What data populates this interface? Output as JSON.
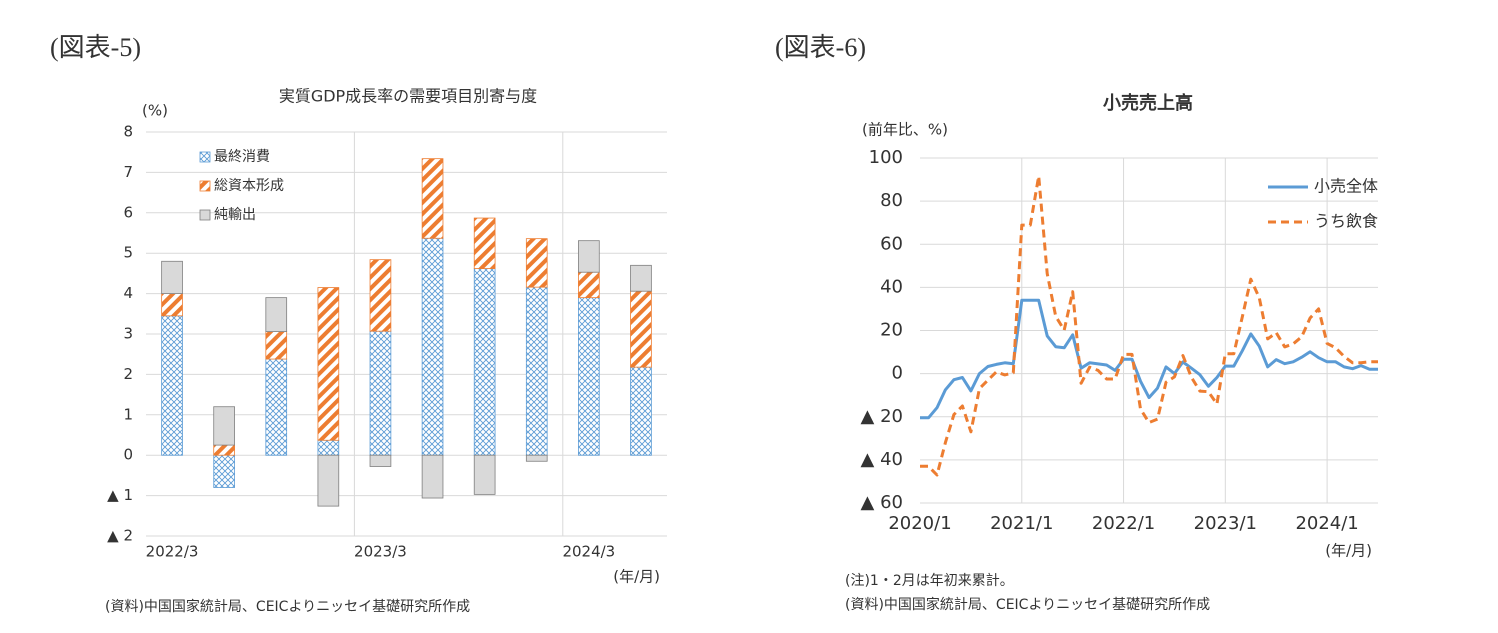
{
  "chart_data": [
    {
      "type": "bar",
      "stacked": true,
      "figure_label": "(図表-5)",
      "title": "実質GDP成長率の需要項目別寄与度",
      "y_unit": "(%)",
      "x_unit": "(年/月)",
      "source": "(資料)中国国家統計局、CEICよりニッセイ基礎研究所作成",
      "categories": [
        "2022/3",
        null,
        null,
        null,
        "2023/3",
        null,
        null,
        null,
        "2024/3",
        null
      ],
      "series": [
        {
          "name": "最終消費",
          "color": "#5b9bd5",
          "pattern": "crosshatch",
          "values": [
            3.45,
            -0.8,
            2.38,
            0.37,
            3.07,
            5.37,
            4.62,
            4.16,
            3.9,
            2.18
          ]
        },
        {
          "name": "総資本形成",
          "color": "#ed7d31",
          "pattern": "diagonal",
          "values": [
            0.55,
            0.25,
            0.68,
            3.78,
            1.77,
            1.97,
            1.25,
            1.2,
            0.63,
            1.88
          ]
        },
        {
          "name": "純輸出",
          "color": "#d9d9d9",
          "pattern": "solid",
          "values": [
            0.8,
            0.95,
            0.84,
            -1.26,
            -0.28,
            -1.06,
            -0.97,
            -0.15,
            0.78,
            0.64
          ]
        }
      ],
      "ylim": [
        -2,
        8
      ],
      "yticks": [
        {
          "value": -2,
          "label": "▲ 2"
        },
        {
          "value": -1,
          "label": "▲ 1"
        },
        0,
        1,
        2,
        3,
        4,
        5,
        6,
        7,
        8
      ],
      "grid": true,
      "legend": "upper left"
    },
    {
      "type": "line",
      "figure_label": "(図表-6)",
      "title": "小売売上高",
      "y_unit": "(前年比、%)",
      "x_unit": "(年/月)",
      "note": "(注)1・2月は年初来累計。",
      "source": "(資料)中国国家統計局、CEICよりニッセイ基礎研究所作成",
      "categories": [
        "2020/1",
        null,
        null,
        null,
        null,
        null,
        null,
        null,
        null,
        null,
        null,
        null,
        "2021/1",
        null,
        null,
        null,
        null,
        null,
        null,
        null,
        null,
        null,
        null,
        null,
        "2022/1",
        null,
        null,
        null,
        null,
        null,
        null,
        null,
        null,
        null,
        null,
        null,
        "2023/1",
        null,
        null,
        null,
        null,
        null,
        null,
        null,
        null,
        null,
        null,
        null,
        "2024/1",
        null,
        null,
        null,
        null,
        null,
        null
      ],
      "series": [
        {
          "name": "小売全体",
          "color": "#5b9bd5",
          "style": "solid",
          "values": [
            -20.5,
            -20.5,
            -15.8,
            -7.5,
            -2.8,
            -1.8,
            -8,
            0,
            3.3,
            4.3,
            5,
            4.6,
            34,
            34,
            34,
            17.5,
            12.5,
            12,
            18,
            2.5,
            5,
            4.5,
            4,
            1.5,
            6.7,
            6.7,
            -3.5,
            -11.1,
            -6.7,
            3.1,
            0,
            5.4,
            2.5,
            -0.5,
            -5.9,
            -1.8,
            3.5,
            3.5,
            10.6,
            18.4,
            12.7,
            3.1,
            6.5,
            4.6,
            5.5,
            7.6,
            10.1,
            7.4,
            5.5,
            5.5,
            3.1,
            2.3,
            3.7,
            2.0,
            2.0
          ]
        },
        {
          "name": "うち飲食",
          "color": "#ed7d31",
          "style": "dashed",
          "values": [
            -43,
            -43,
            -47,
            -32,
            -19,
            -15,
            -27,
            -7,
            -3,
            0.8,
            -0.6,
            0.4,
            68.9,
            68.9,
            91.6,
            46.4,
            26.6,
            20.2,
            38,
            -4.5,
            3,
            1.5,
            -2.5,
            -2.5,
            8.9,
            8.9,
            -16.4,
            -22.7,
            -21.1,
            -4,
            -1.5,
            8.4,
            -1.7,
            -8.1,
            -8.4,
            -14.1,
            9.2,
            9.2,
            26.3,
            43.8,
            35.1,
            16.1,
            19,
            12.4,
            13.8,
            17.1,
            25.8,
            30,
            14,
            12,
            8,
            5,
            5,
            5.5,
            5.5
          ]
        }
      ],
      "ylim": [
        -60,
        100
      ],
      "yticks": [
        {
          "value": -60,
          "label": "▲ 60"
        },
        {
          "value": -40,
          "label": "▲ 40"
        },
        {
          "value": -20,
          "label": "▲ 20"
        },
        0,
        20,
        40,
        60,
        80,
        100
      ],
      "grid": true,
      "legend": "upper right"
    }
  ]
}
